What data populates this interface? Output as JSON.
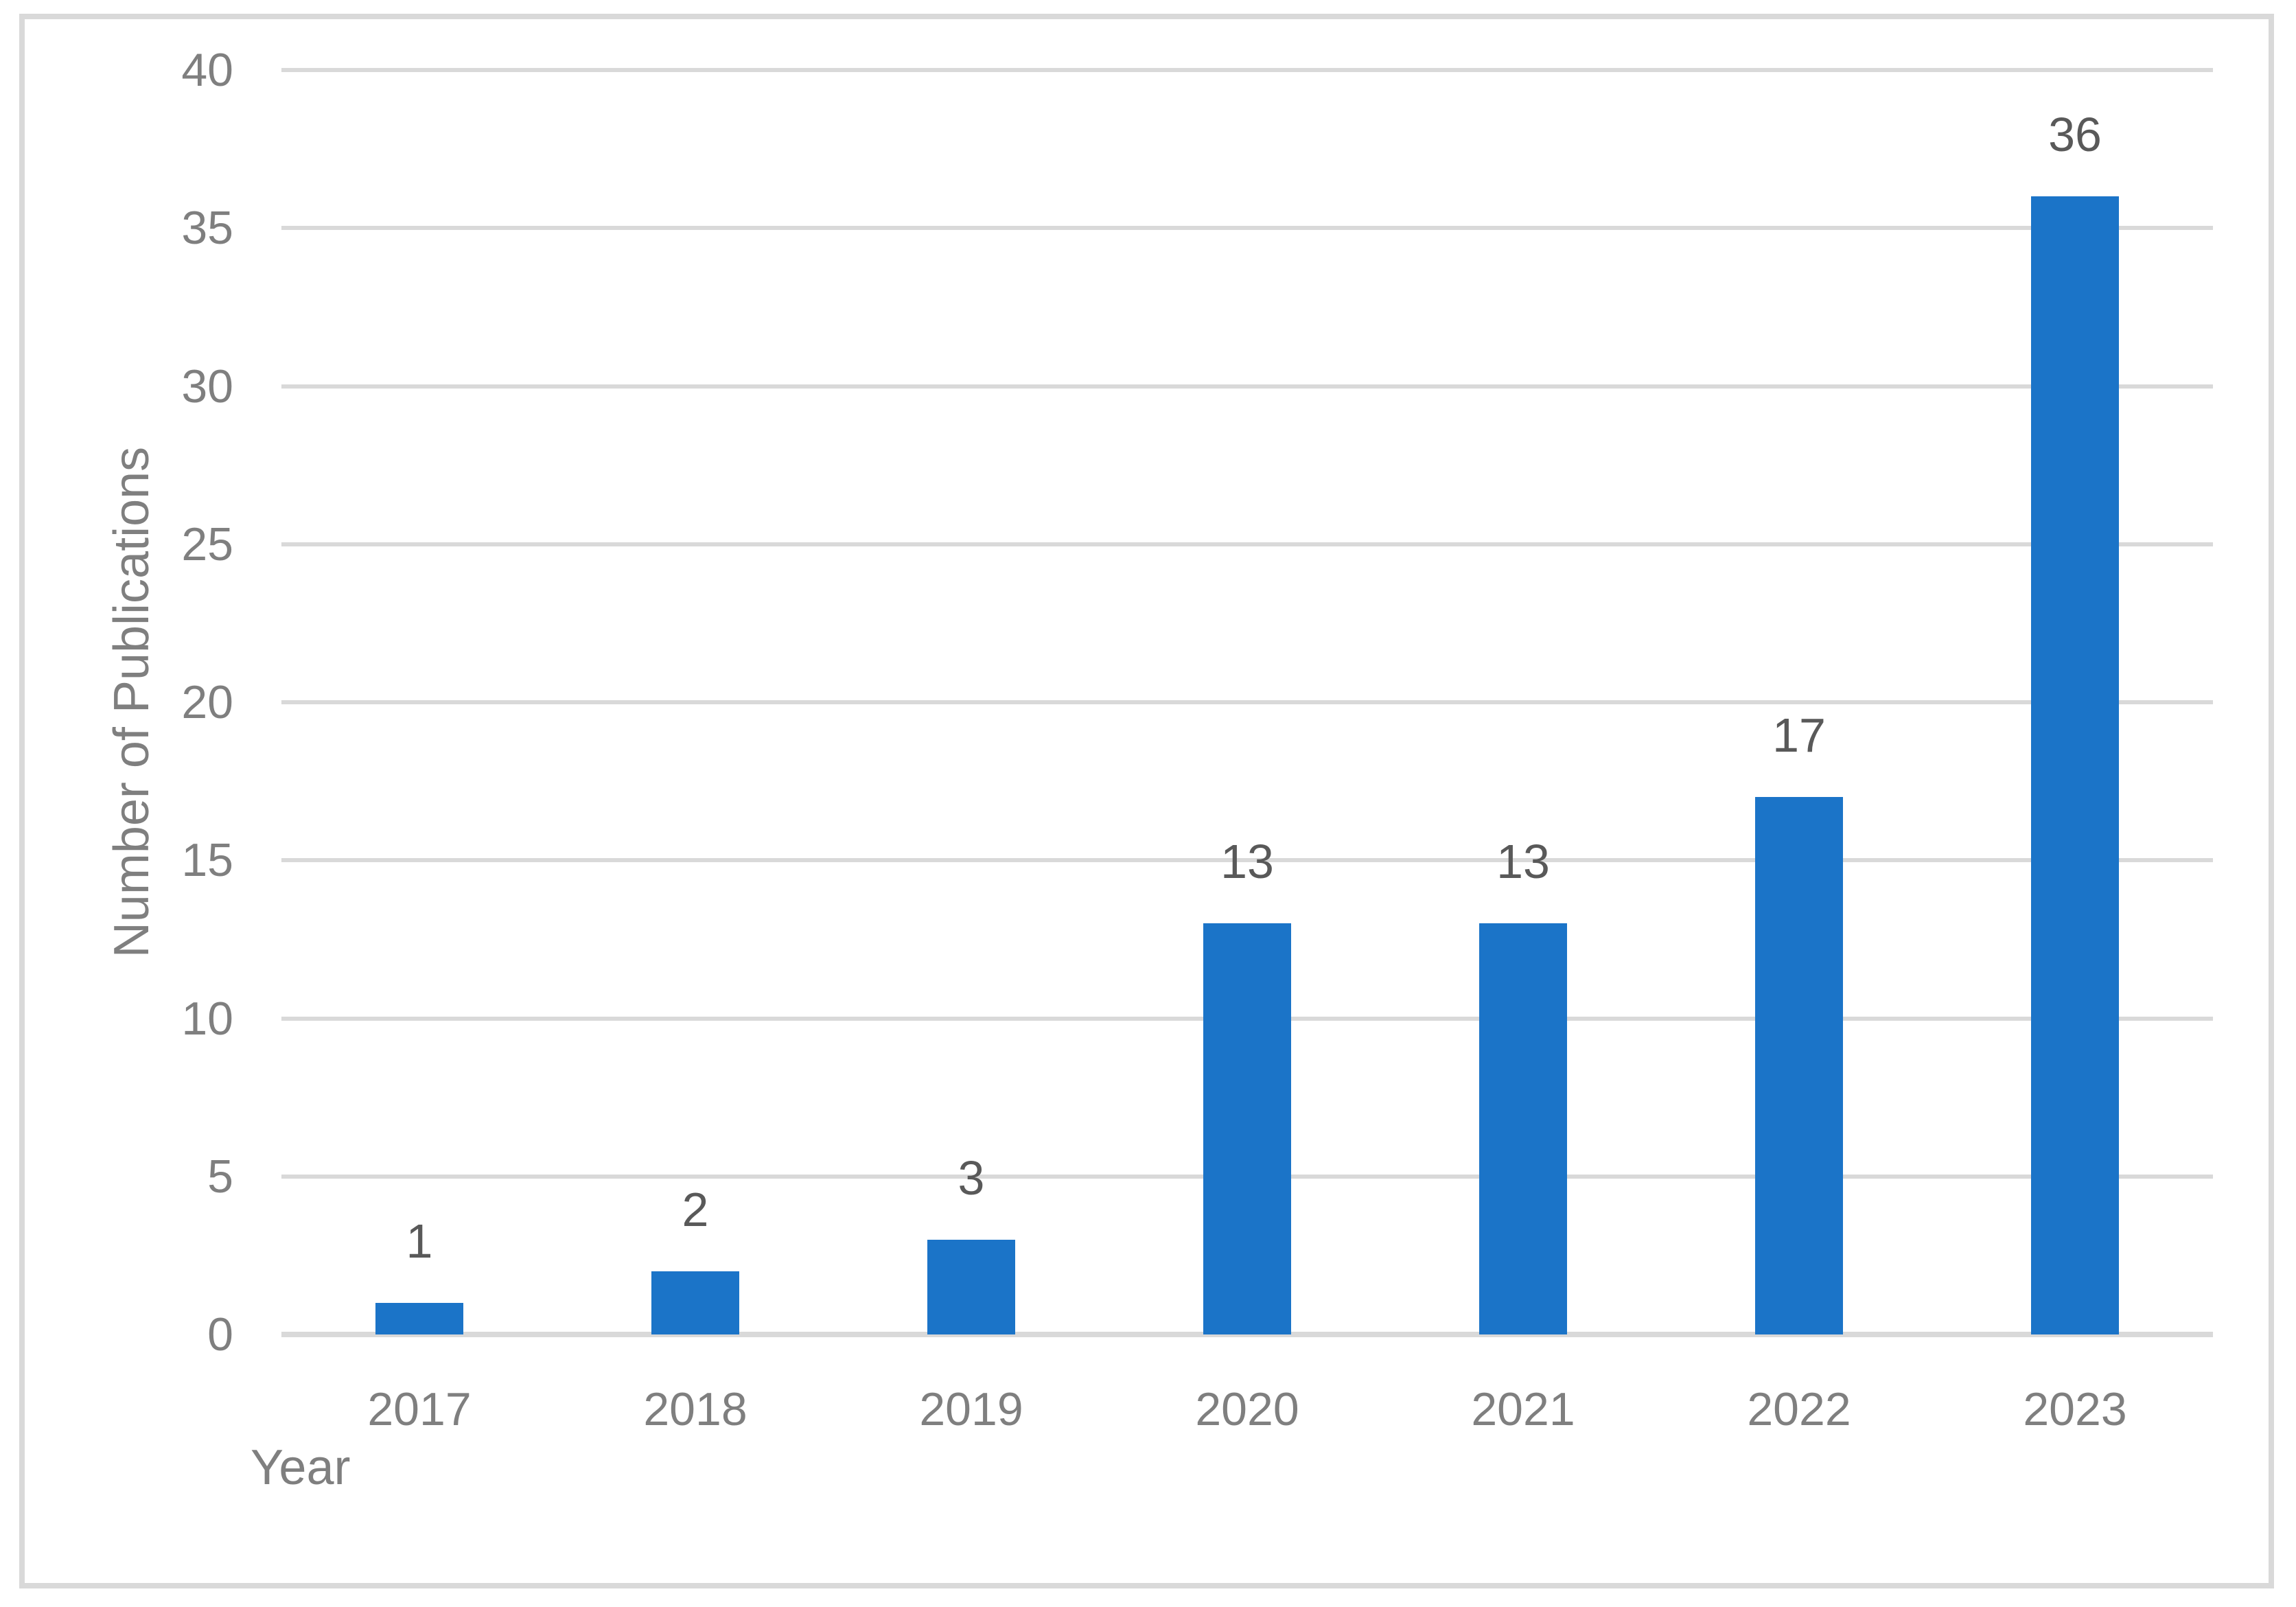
{
  "chart_data": {
    "type": "bar",
    "title": "",
    "categories": [
      "2017",
      "2018",
      "2019",
      "2020",
      "2021",
      "2022",
      "2023"
    ],
    "values": [
      1,
      2,
      3,
      13,
      13,
      17,
      36
    ],
    "data_labels": [
      "1",
      "2",
      "3",
      "13",
      "13",
      "17",
      "36"
    ],
    "xlabel": "Year",
    "ylabel": "Number of Publications",
    "ylim": [
      0,
      40
    ],
    "yticks": [
      0,
      5,
      10,
      15,
      20,
      25,
      30,
      35,
      40
    ],
    "grid": "horizontal",
    "legend_position": "none"
  },
  "colors": {
    "bar_fill": "#1b74c8",
    "gridline": "#d9d9d9",
    "axis_line": "#d9d9d9",
    "frame_border": "#d9d9d9",
    "tick_text": "#7f7f7f",
    "axis_title_text": "#7f7f7f",
    "data_label_text": "#595959",
    "background": "#ffffff"
  }
}
